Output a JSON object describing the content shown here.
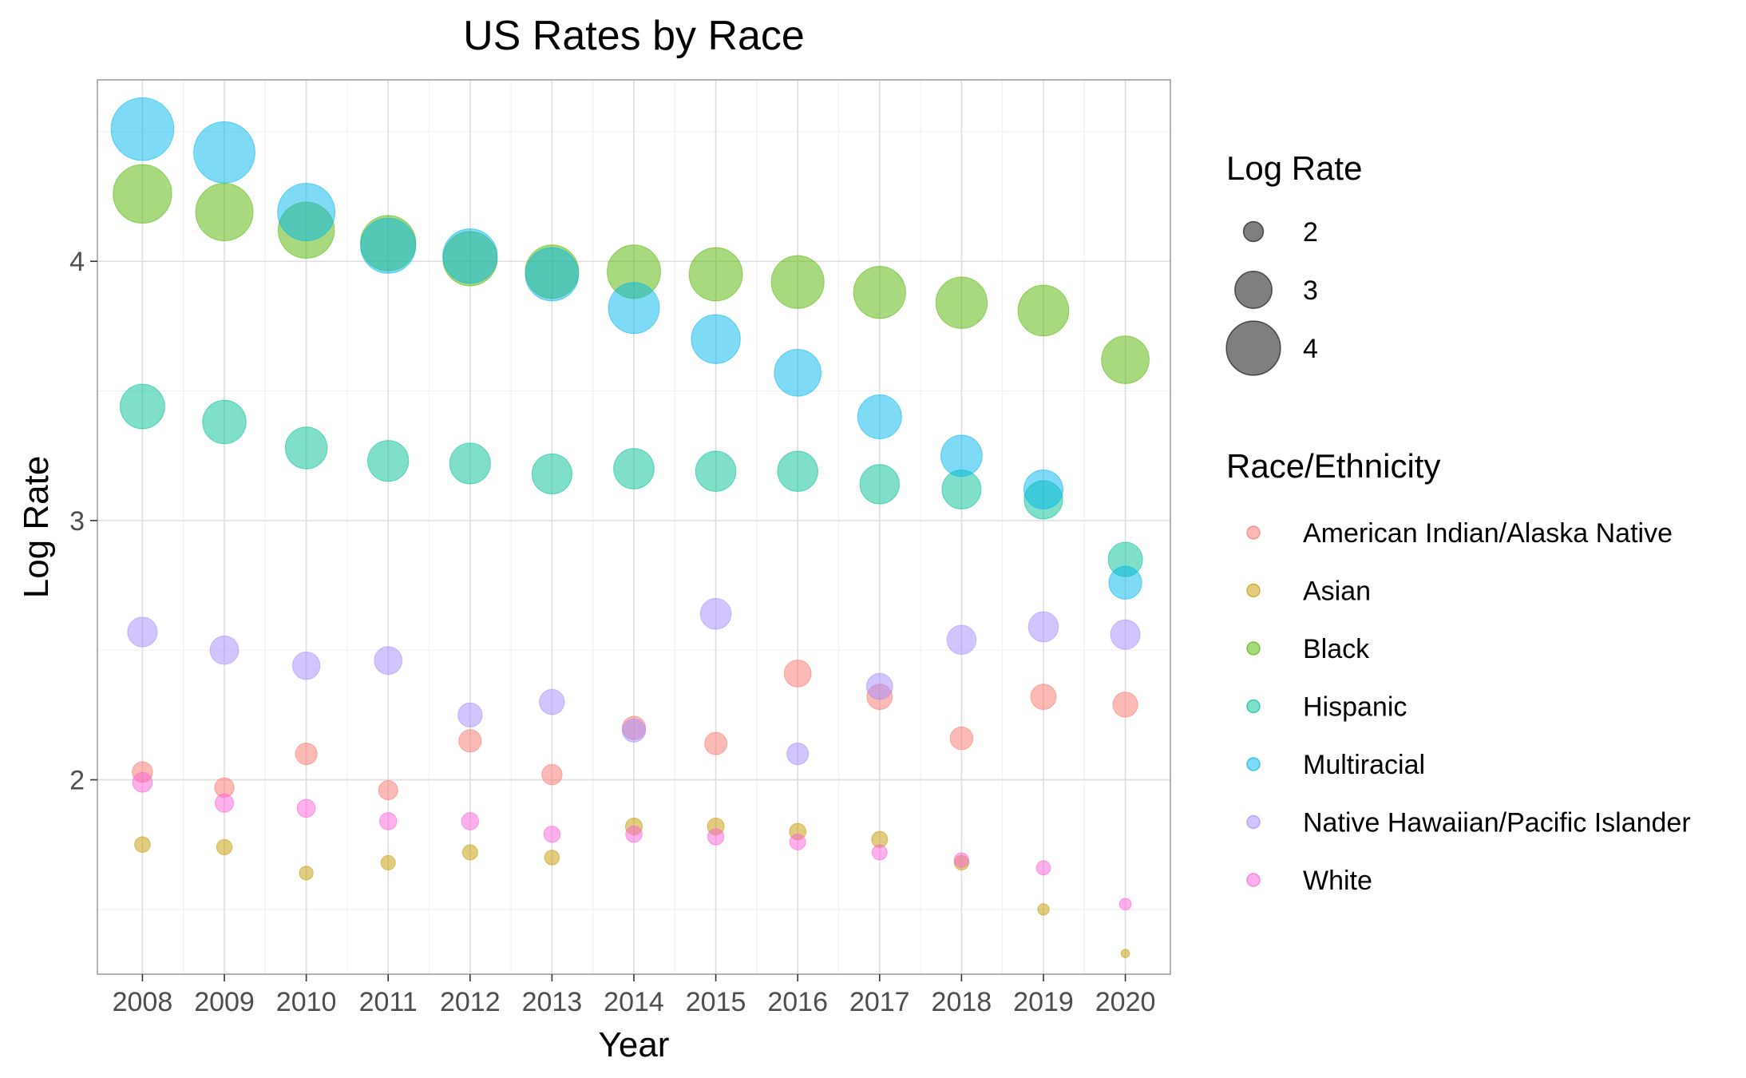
{
  "chart_data": {
    "type": "scatter",
    "title": "US Rates by Race",
    "xlabel": "Year",
    "ylabel": "Log Rate",
    "x": [
      2008,
      2009,
      2010,
      2011,
      2012,
      2013,
      2014,
      2015,
      2016,
      2017,
      2018,
      2019,
      2020
    ],
    "x_ticks": [
      "2008",
      "2009",
      "2010",
      "2011",
      "2012",
      "2013",
      "2014",
      "2015",
      "2016",
      "2017",
      "2018",
      "2019",
      "2020"
    ],
    "ylim": [
      1.25,
      4.7
    ],
    "y_ticks": [
      2,
      3,
      4
    ],
    "y_tick_labels": [
      "2",
      "3",
      "4"
    ],
    "grid": true,
    "size_encoding": "Log Rate",
    "size_legend": {
      "title": "Log Rate",
      "values": [
        2,
        3,
        4
      ],
      "labels": [
        "2",
        "3",
        "4"
      ]
    },
    "color_legend_title": "Race/Ethnicity",
    "legend_position": "right",
    "series": [
      {
        "name": "American Indian/Alaska Native",
        "color": "#F8766D",
        "values": [
          2.03,
          1.97,
          2.1,
          1.96,
          2.15,
          2.02,
          2.2,
          2.14,
          2.41,
          2.32,
          2.16,
          2.32,
          2.29
        ]
      },
      {
        "name": "Asian",
        "color": "#C49A00",
        "values": [
          1.75,
          1.74,
          1.64,
          1.68,
          1.72,
          1.7,
          1.82,
          1.82,
          1.8,
          1.77,
          1.68,
          1.5,
          1.33
        ]
      },
      {
        "name": "Black",
        "color": "#53B400",
        "values": [
          4.26,
          4.19,
          4.12,
          4.07,
          4.01,
          3.96,
          3.96,
          3.95,
          3.92,
          3.88,
          3.84,
          3.81,
          3.62
        ]
      },
      {
        "name": "Hispanic",
        "color": "#00C094",
        "values": [
          3.44,
          3.38,
          3.28,
          3.23,
          3.22,
          3.18,
          3.2,
          3.19,
          3.19,
          3.14,
          3.12,
          3.08,
          2.85
        ]
      },
      {
        "name": "Multiracial",
        "color": "#00B6EB",
        "values": [
          4.51,
          4.42,
          4.19,
          4.06,
          4.02,
          3.95,
          3.82,
          3.7,
          3.57,
          3.4,
          3.25,
          3.12,
          2.76
        ]
      },
      {
        "name": "Native Hawaiian/Pacific Islander",
        "color": "#A58AFF",
        "values": [
          2.57,
          2.5,
          2.44,
          2.46,
          2.25,
          2.3,
          2.19,
          2.64,
          2.1,
          2.36,
          2.54,
          2.59,
          2.56
        ]
      },
      {
        "name": "White",
        "color": "#FB61D7",
        "values": [
          1.99,
          1.91,
          1.89,
          1.84,
          1.84,
          1.79,
          1.79,
          1.78,
          1.76,
          1.72,
          1.69,
          1.66,
          1.52
        ]
      }
    ]
  }
}
